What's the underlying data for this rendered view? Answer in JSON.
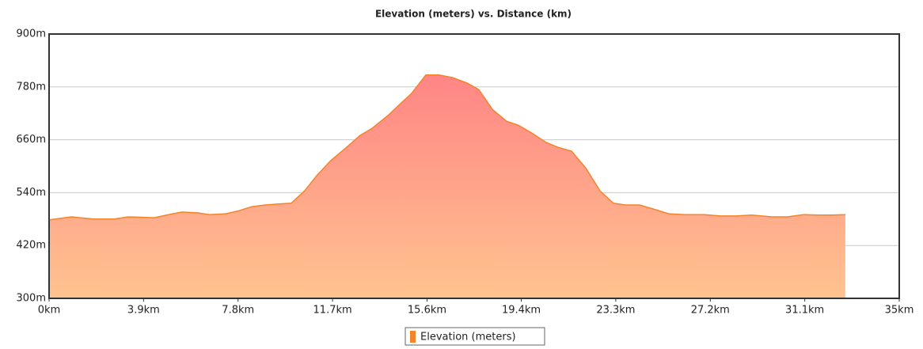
{
  "chart_data": {
    "type": "area",
    "title": "Elevation (meters) vs. Distance (km)",
    "series": [
      {
        "name": "Elevation (meters)",
        "color": "#f5832a",
        "x": [
          0,
          0.91,
          1.82,
          2.7,
          3.26,
          4.33,
          4.92,
          5.47,
          6.13,
          6.61,
          7.27,
          7.76,
          8.34,
          8.9,
          9.38,
          9.97,
          10.52,
          11.01,
          11.6,
          12.25,
          12.81,
          13.3,
          13.95,
          14.43,
          14.92,
          15.51,
          16.06,
          16.62,
          17.2,
          17.69,
          18.25,
          18.83,
          19.32,
          19.88,
          20.46,
          20.95,
          21.51,
          22.09,
          22.68,
          23.23,
          23.72,
          24.31,
          24.86,
          25.51,
          26.16,
          26.98,
          27.63,
          28.28,
          28.93,
          29.75,
          30.4,
          31.05,
          31.7,
          32.19,
          32.78
        ],
        "values": [
          478,
          485,
          480,
          480,
          485,
          483,
          490,
          496,
          494,
          490,
          492,
          498,
          508,
          512,
          514,
          516,
          544,
          578,
          613,
          643,
          670,
          686,
          715,
          740,
          765,
          807,
          807,
          801,
          789,
          774,
          729,
          702,
          693,
          675,
          654,
          643,
          634,
          596,
          544,
          516,
          512,
          512,
          503,
          492,
          490,
          490,
          487,
          487,
          489,
          485,
          485,
          490,
          489,
          489,
          490
        ]
      }
    ],
    "xlim": [
      0,
      35
    ],
    "xticks": [
      {
        "value": 0,
        "label": "0km"
      },
      {
        "value": 3.89,
        "label": "3.9km"
      },
      {
        "value": 7.78,
        "label": "7.8km"
      },
      {
        "value": 11.67,
        "label": "11.7km"
      },
      {
        "value": 15.56,
        "label": "15.6km"
      },
      {
        "value": 19.44,
        "label": "19.4km"
      },
      {
        "value": 23.33,
        "label": "23.3km"
      },
      {
        "value": 27.22,
        "label": "27.2km"
      },
      {
        "value": 31.11,
        "label": "31.1km"
      },
      {
        "value": 35,
        "label": "35km"
      }
    ],
    "ylim": [
      300,
      900
    ],
    "yticks": [
      {
        "value": 300,
        "label": "300m"
      },
      {
        "value": 420,
        "label": "420m"
      },
      {
        "value": 540,
        "label": "540m"
      },
      {
        "value": 660,
        "label": "660m"
      },
      {
        "value": 780,
        "label": "780m"
      },
      {
        "value": 900,
        "label": "900m"
      }
    ],
    "grid": true
  }
}
